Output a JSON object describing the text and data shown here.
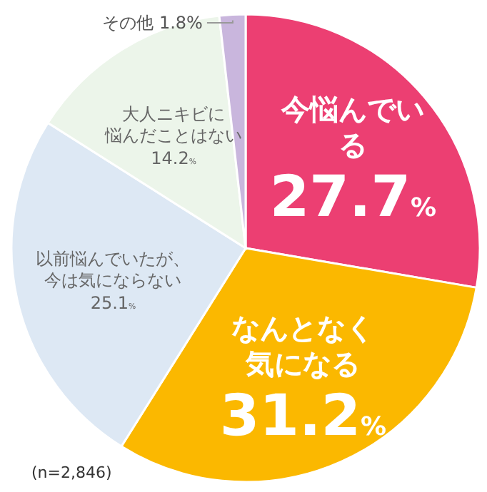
{
  "chart_data": {
    "type": "pie",
    "categories": [
      "今悩んでいる",
      "なんとなく気になる",
      "以前悩んでいたが、今は気にならない",
      "大人ニキビに悩んだことはない",
      "その他"
    ],
    "values": [
      27.7,
      31.2,
      25.1,
      14.2,
      1.8
    ],
    "colors": [
      "#ec3f72",
      "#fbb800",
      "#dde8f4",
      "#ecf5ea",
      "#c9b6dd"
    ],
    "value_labels": [
      "27.7%",
      "31.2%",
      "25.1%",
      "14.2%",
      "1.8%"
    ],
    "annotations": [
      "(n=2,846)"
    ]
  }
}
